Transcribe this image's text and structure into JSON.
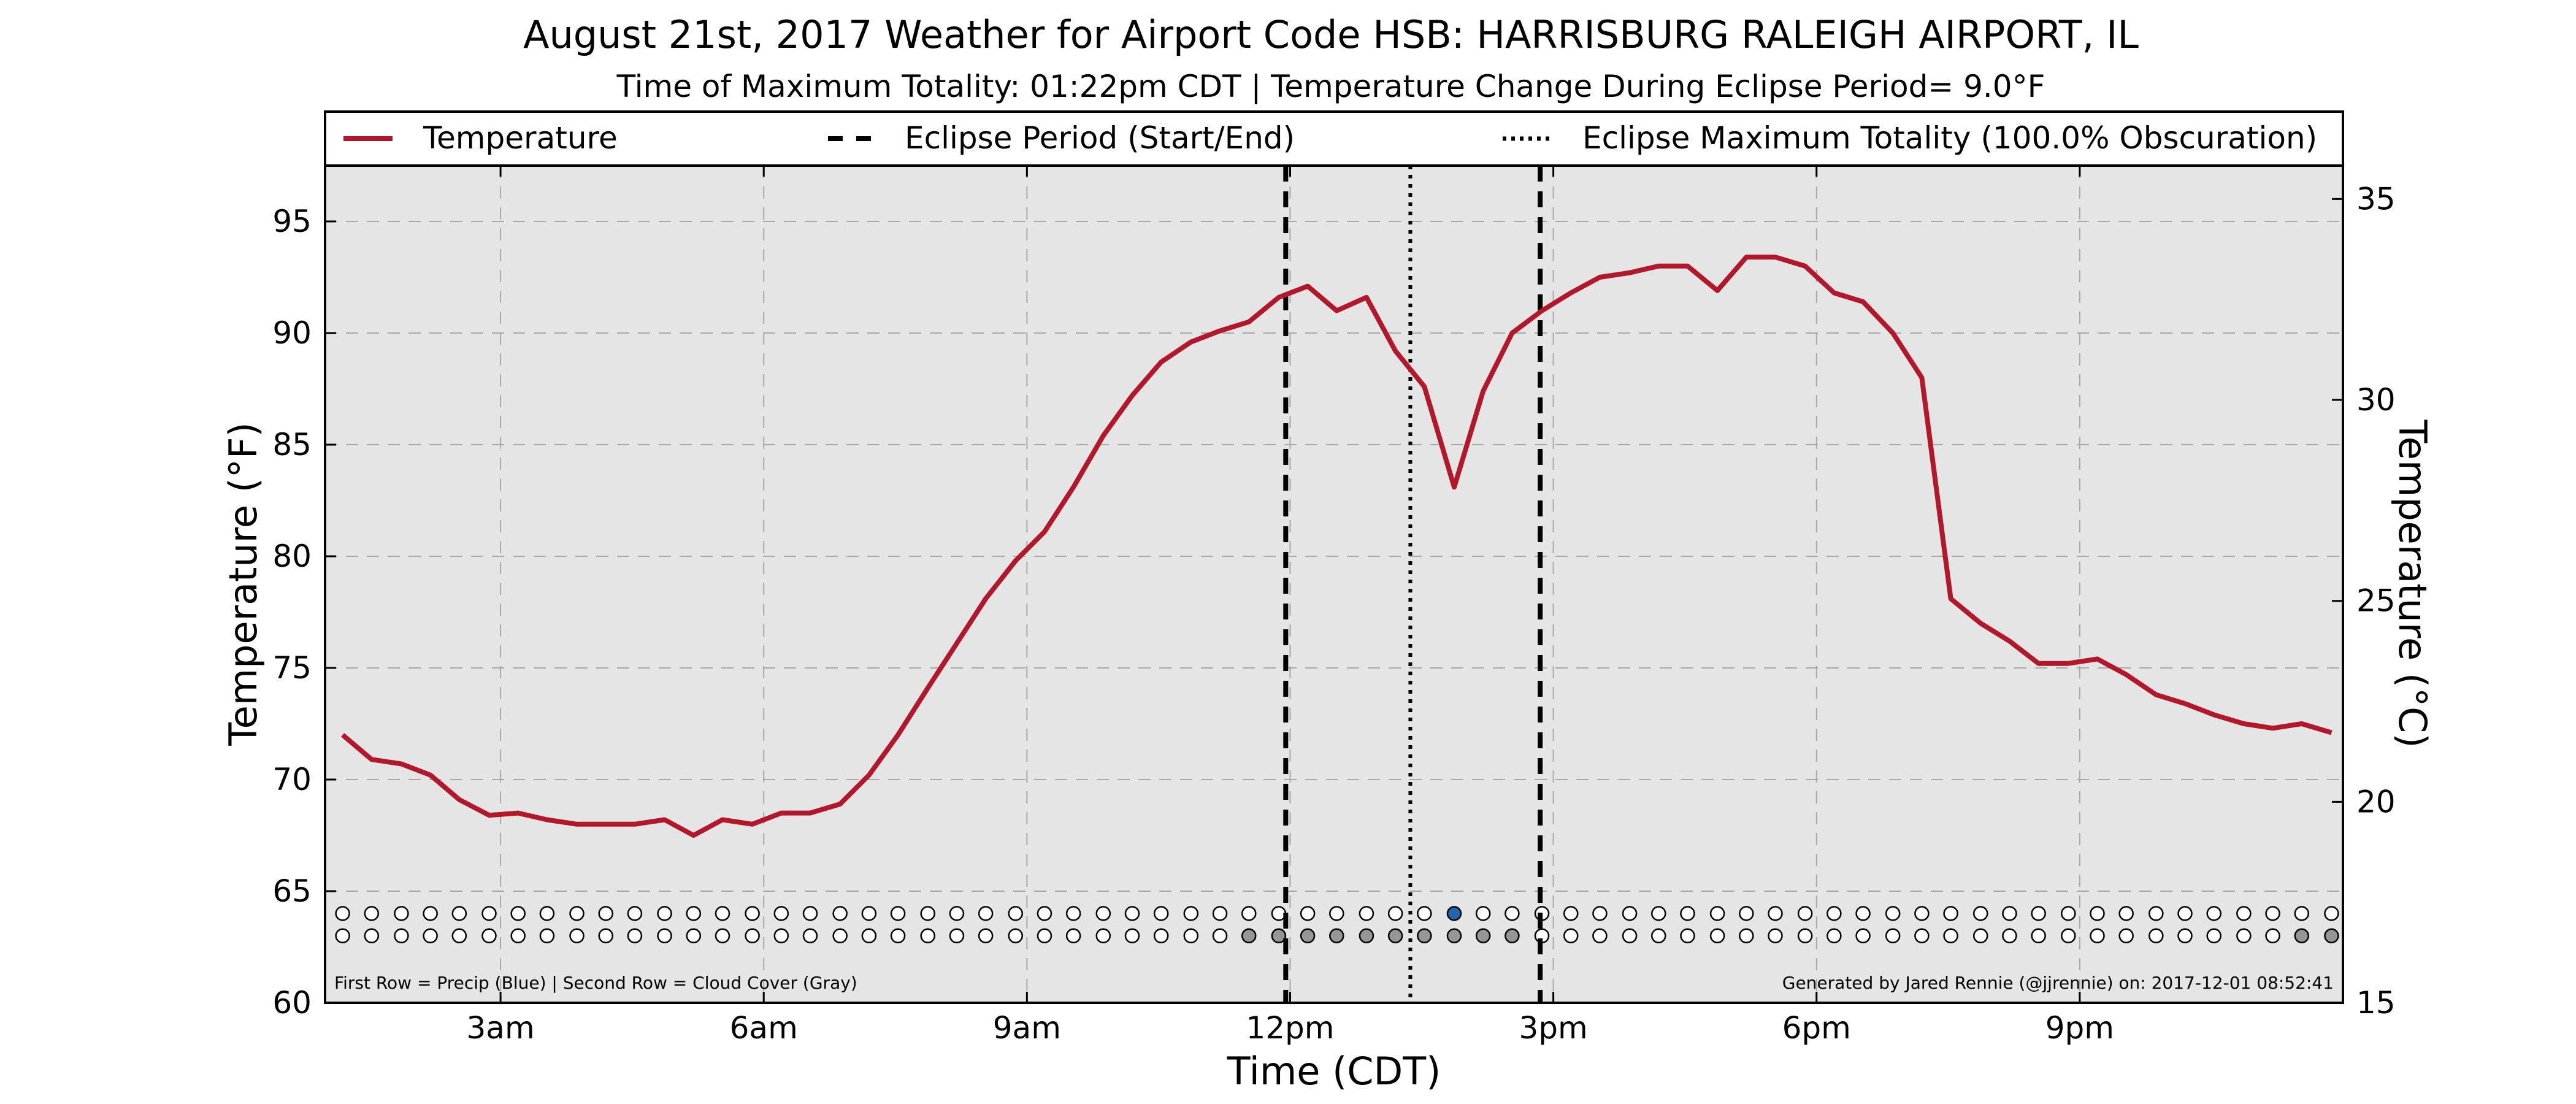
{
  "chart_data": {
    "type": "line",
    "title": "August 21st, 2017 Weather for Airport Code HSB: HARRISBURG RALEIGH AIRPORT, IL",
    "subtitle": "Time of Maximum Totality: 01:22pm CDT | Temperature Change During Eclipse Period= 9.0°F",
    "xlabel": "Time (CDT)",
    "ylabel": "Temperature (°F)",
    "ylabel_right": "Temperature (°C)",
    "x_unit": "hours since midnight CDT (Aug 21, 2017)",
    "xlim": [
      1.0,
      24.0
    ],
    "ylim": [
      60,
      97.5
    ],
    "ylim_right": [
      15,
      35.83
    ],
    "x_ticks": [
      {
        "value": 3,
        "label": "3am"
      },
      {
        "value": 6,
        "label": "6am"
      },
      {
        "value": 9,
        "label": "9am"
      },
      {
        "value": 12,
        "label": "12pm"
      },
      {
        "value": 15,
        "label": "3pm"
      },
      {
        "value": 18,
        "label": "6pm"
      },
      {
        "value": 21,
        "label": "9pm"
      }
    ],
    "y_ticks": [
      60,
      65,
      70,
      75,
      80,
      85,
      90,
      95
    ],
    "y_ticks_right": [
      15,
      20,
      25,
      30,
      35
    ],
    "grid": true,
    "legend_position": "top",
    "legend": [
      {
        "label": "Temperature",
        "style": "solid",
        "color": "#b2182b"
      },
      {
        "label": "Eclipse Period (Start/End)",
        "style": "dashed",
        "color": "#000000"
      },
      {
        "label": "Eclipse Maximum Totality (100.0% Obscuration)",
        "style": "dotted",
        "color": "#000000"
      }
    ],
    "series": [
      {
        "name": "Temperature",
        "color": "#b2182b",
        "x": [
          1.2,
          1.53,
          1.87,
          2.2,
          2.53,
          2.87,
          3.2,
          3.53,
          3.87,
          4.2,
          4.53,
          4.87,
          5.2,
          5.53,
          5.87,
          6.2,
          6.53,
          6.87,
          7.2,
          7.53,
          7.87,
          8.2,
          8.53,
          8.87,
          9.2,
          9.53,
          9.87,
          10.2,
          10.53,
          10.87,
          11.2,
          11.53,
          11.87,
          12.2,
          12.53,
          12.87,
          13.2,
          13.53,
          13.87,
          14.2,
          14.53,
          14.87,
          15.2,
          15.53,
          15.87,
          16.2,
          16.53,
          16.87,
          17.2,
          17.53,
          17.87,
          18.2,
          18.53,
          18.87,
          19.2,
          19.53,
          19.87,
          20.2,
          20.53,
          20.87,
          21.2,
          21.53,
          21.87,
          22.2,
          22.53,
          22.87,
          23.2,
          23.53,
          23.87
        ],
        "y": [
          72.0,
          70.9,
          70.7,
          70.2,
          69.1,
          68.4,
          68.5,
          68.2,
          68.0,
          68.0,
          68.0,
          68.2,
          67.5,
          68.2,
          68.0,
          68.5,
          68.5,
          68.9,
          70.2,
          72.0,
          74.1,
          76.1,
          78.1,
          79.8,
          81.1,
          83.1,
          85.4,
          87.2,
          88.7,
          89.6,
          90.1,
          90.5,
          91.6,
          92.1,
          91.0,
          91.6,
          89.2,
          87.6,
          83.1,
          87.4,
          90.0,
          91.0,
          91.8,
          92.5,
          92.7,
          93.0,
          93.0,
          91.9,
          93.4,
          93.4,
          93.0,
          91.8,
          91.4,
          90.0,
          88.0,
          78.1,
          77.0,
          76.2,
          75.2,
          75.2,
          75.4,
          74.7,
          73.8,
          73.4,
          72.9,
          72.5,
          72.3,
          72.5,
          72.1
        ]
      }
    ],
    "vlines": [
      {
        "x": 11.95,
        "style": "dashed",
        "label": "Eclipse start"
      },
      {
        "x": 13.37,
        "style": "dotted",
        "label": "Maximum totality"
      },
      {
        "x": 14.85,
        "style": "dashed",
        "label": "Eclipse end"
      }
    ],
    "indicator_rows": {
      "precip_y": 64.0,
      "cloud_y": 63.0,
      "x": [
        1.2,
        1.53,
        1.87,
        2.2,
        2.53,
        2.87,
        3.2,
        3.53,
        3.87,
        4.2,
        4.53,
        4.87,
        5.2,
        5.53,
        5.87,
        6.2,
        6.53,
        6.87,
        7.2,
        7.53,
        7.87,
        8.2,
        8.53,
        8.87,
        9.2,
        9.53,
        9.87,
        10.2,
        10.53,
        10.87,
        11.2,
        11.53,
        11.87,
        12.2,
        12.53,
        12.87,
        13.2,
        13.53,
        13.87,
        14.2,
        14.53,
        14.87,
        15.2,
        15.53,
        15.87,
        16.2,
        16.53,
        16.87,
        17.2,
        17.53,
        17.87,
        18.2,
        18.53,
        18.87,
        19.2,
        19.53,
        19.87,
        20.2,
        20.53,
        20.87,
        21.2,
        21.53,
        21.87,
        22.2,
        22.53,
        22.87,
        23.2,
        23.53,
        23.87
      ],
      "precip": [
        0,
        0,
        0,
        0,
        0,
        0,
        0,
        0,
        0,
        0,
        0,
        0,
        0,
        0,
        0,
        0,
        0,
        0,
        0,
        0,
        0,
        0,
        0,
        0,
        0,
        0,
        0,
        0,
        0,
        0,
        0,
        0,
        0,
        0,
        0,
        0,
        0,
        0,
        1,
        0,
        0,
        0,
        0,
        0,
        0,
        0,
        0,
        0,
        0,
        0,
        0,
        0,
        0,
        0,
        0,
        0,
        0,
        0,
        0,
        0,
        0,
        0,
        0,
        0,
        0,
        0,
        0,
        0,
        0
      ],
      "cloud": [
        0,
        0,
        0,
        0,
        0,
        0,
        0,
        0,
        0,
        0,
        0,
        0,
        0,
        0,
        0,
        0,
        0,
        0,
        0,
        0,
        0,
        0,
        0,
        0,
        0,
        0,
        0,
        0,
        0,
        0,
        0,
        1,
        1,
        1,
        1,
        1,
        1,
        1,
        1,
        1,
        1,
        0,
        0,
        0,
        0,
        0,
        0,
        0,
        0,
        0,
        0,
        0,
        0,
        0,
        0,
        0,
        0,
        0,
        0,
        0,
        0,
        0,
        0,
        0,
        0,
        0,
        0,
        1,
        1
      ],
      "precip_color": "#2166ac",
      "cloud_color": "#969696"
    },
    "footer_left": "First Row = Precip (Blue) | Second Row = Cloud Cover (Gray)",
    "footer_right": "Generated by Jared Rennie (@jjrennie) on: 2017-12-01 08:52:41"
  }
}
